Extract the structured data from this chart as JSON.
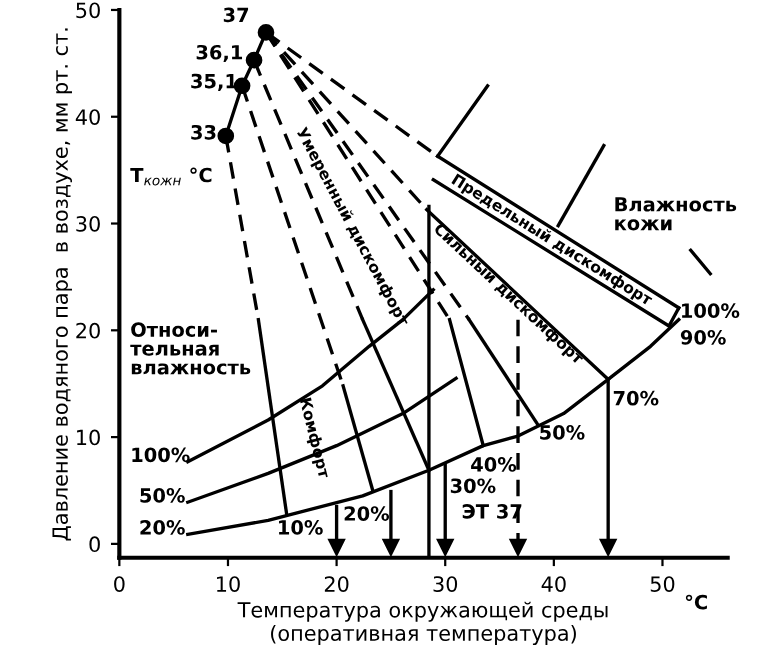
{
  "chart_data": {
    "type": "line",
    "xlabel": "Температура окружающей среды\n(оперативная температура)",
    "ylabel": "Давление водяного пара  в воздухе, мм рт. ст.",
    "xlim": [
      0,
      56
    ],
    "ylim": [
      -1.3,
      50
    ],
    "xticks": [
      0,
      10,
      20,
      30,
      40,
      50
    ],
    "yticks": [
      0,
      10,
      20,
      30,
      40,
      50
    ],
    "grid": false,
    "series": [
      {
        "color": "#000000",
        "line_style": "solid",
        "marker": "circle",
        "x": [
          9.8,
          11.3,
          12.4,
          13.5
        ],
        "values": [
          38.2,
          42.9,
          45.3,
          47.9
        ]
      },
      {
        "color": "#000000",
        "line_style": "solid",
        "x": [
          6.3,
          13.7,
          18.7,
          23,
          26.1,
          28.9
        ],
        "values": [
          7.7,
          11.6,
          14.8,
          18.5,
          21,
          23.8
        ]
      },
      {
        "color": "#000000",
        "line_style": "solid",
        "x": [
          6.3,
          13.7,
          20,
          26.1,
          31
        ],
        "values": [
          3.9,
          6.6,
          9.2,
          12.2,
          15.5
        ]
      },
      {
        "color": "#000000",
        "line_style": "solid",
        "x": [
          6.3,
          13.7,
          22.4,
          28.5,
          33.5,
          36.7,
          40.9,
          45,
          48.9,
          51.5
        ],
        "values": [
          0.9,
          2.2,
          4.5,
          6.9,
          9.2,
          10.1,
          12.2,
          15.4,
          18.5,
          21
        ]
      },
      {
        "color": "#000000",
        "line_style": "dashed",
        "x": [
          9.8,
          12.8
        ],
        "values": [
          38.2,
          21
        ]
      },
      {
        "color": "#000000",
        "line_style": "solid",
        "x": [
          12.8,
          15.4
        ],
        "values": [
          21,
          2.8
        ]
      },
      {
        "color": "#000000",
        "line_style": "dashed",
        "x": [
          11.3,
          20.6
        ],
        "values": [
          42.9,
          14.8
        ]
      },
      {
        "color": "#000000",
        "line_style": "solid",
        "x": [
          20.6,
          23.3
        ],
        "values": [
          14.8,
          5.1
        ]
      },
      {
        "color": "#000000",
        "line_style": "dashed",
        "x": [
          12.4,
          22.4
        ],
        "values": [
          45.3,
          21
        ]
      },
      {
        "color": "#000000",
        "line_style": "dashed",
        "x": [
          13.5,
          28.3
        ],
        "values": [
          47.9,
          31.3
        ]
      },
      {
        "color": "#000000",
        "line_style": "dashed",
        "x": [
          13.5,
          29.3
        ],
        "values": [
          47.9,
          36.3
        ]
      },
      {
        "color": "#000000",
        "line_style": "dashed",
        "x": [
          13.5,
          30.4
        ],
        "values": [
          47.9,
          21
        ]
      },
      {
        "color": "#000000",
        "line_style": "dashed",
        "x": [
          13.5,
          32.2
        ],
        "values": [
          47.9,
          21
        ]
      },
      {
        "color": "#000000",
        "line_style": "solid",
        "x": [
          22.4,
          28.5
        ],
        "values": [
          21,
          6.9
        ]
      },
      {
        "color": "#000000",
        "line_style": "solid",
        "x": [
          30.4,
          33.5
        ],
        "values": [
          21,
          9.2
        ]
      },
      {
        "color": "#000000",
        "line_style": "solid",
        "x": [
          32.2,
          38.5
        ],
        "values": [
          21,
          11.2
        ]
      },
      {
        "color": "#000000",
        "line_style": "solid",
        "x": [
          28.3,
          45
        ],
        "values": [
          31.3,
          15.4
        ]
      },
      {
        "color": "#000000",
        "line_style": "solid",
        "x": [
          29.3,
          51.5
        ],
        "values": [
          36.3,
          22.1
        ]
      },
      {
        "color": "#000000",
        "line_style": "solid",
        "x": [
          28.9,
          50.6,
          51.5
        ],
        "values": [
          34.1,
          20.4,
          22.1
        ]
      },
      {
        "color": "#000000",
        "line_style": "solid",
        "x": [
          29.3,
          33.9
        ],
        "values": [
          36.3,
          42.9
        ]
      },
      {
        "color": "#000000",
        "line_style": "solid",
        "x": [
          40.4,
          44.6
        ],
        "values": [
          29.8,
          37.3
        ]
      },
      {
        "color": "#000000",
        "line_style": "solid",
        "x": [
          52.6,
          54.4
        ],
        "values": [
          27.5,
          25.3
        ]
      },
      {
        "color": "#000000",
        "line_style": "solid",
        "x": [
          28.5,
          28.5
        ],
        "values": [
          -1.3,
          31.6
        ]
      },
      {
        "color": "#000000",
        "line_style": "solid",
        "marker": "triangle",
        "x": [
          20,
          20
        ],
        "values": [
          3.5,
          -0.3
        ]
      },
      {
        "color": "#000000",
        "line_style": "solid",
        "marker": "triangle",
        "x": [
          25,
          25
        ],
        "values": [
          4.9,
          -0.3
        ]
      },
      {
        "color": "#000000",
        "line_style": "solid",
        "marker": "triangle",
        "x": [
          30,
          30
        ],
        "values": [
          7.4,
          -0.3
        ]
      },
      {
        "color": "#000000",
        "line_style": "dashed",
        "marker": "triangle",
        "x": [
          36.7,
          36.7
        ],
        "values": [
          21,
          -0.3
        ]
      },
      {
        "color": "#000000",
        "line_style": "solid",
        "marker": "triangle",
        "x": [
          45,
          45
        ],
        "values": [
          15.4,
          -0.3
        ]
      }
    ],
    "annotations": [
      "37",
      "36,1",
      "35,1",
      "33",
      "T$_{кожн}$ °C",
      "Предельный дискомфорт",
      "Сильный дискомфорт",
      "Умеренный дискомфорт",
      "Комфорт",
      "Влажность\nкожи",
      "Относи-\nтельная\nвлажность",
      "100%",
      "50%",
      "20%",
      "10%",
      "20%",
      "30%",
      "40%",
      "50%",
      "70%",
      "90%",
      "100%",
      "ЭТ 37",
      "°C"
    ]
  }
}
